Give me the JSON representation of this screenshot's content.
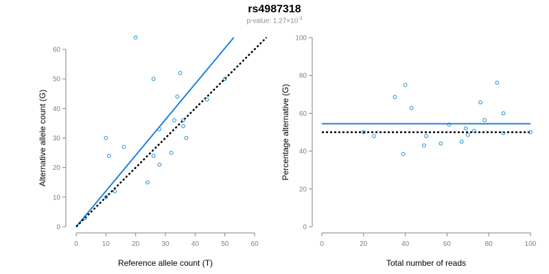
{
  "title": "rs4987318",
  "subtitle": {
    "prefix": "p-value: 1.27×10",
    "exponent": "-3"
  },
  "colors": {
    "fit_line": "#1f7fdc",
    "expected_line": "#000000",
    "points": "#1f8fcf",
    "axis": "#808080",
    "tick_label": "#808080"
  },
  "chart_data": [
    {
      "type": "scatter",
      "xlabel": "Reference allele count (T)",
      "ylabel": "Alternative allele count (G)",
      "xlim": [
        0,
        60
      ],
      "ylim": [
        0,
        60
      ],
      "xticks": [
        0,
        10,
        20,
        30,
        40,
        50,
        60
      ],
      "yticks": [
        0,
        10,
        20,
        30,
        40,
        50,
        60
      ],
      "grid": false,
      "points": [
        {
          "x": 3,
          "y": 3
        },
        {
          "x": 10,
          "y": 10
        },
        {
          "x": 10,
          "y": 30
        },
        {
          "x": 11,
          "y": 24
        },
        {
          "x": 13,
          "y": 12
        },
        {
          "x": 16,
          "y": 27
        },
        {
          "x": 20,
          "y": 64
        },
        {
          "x": 24,
          "y": 15
        },
        {
          "x": 26,
          "y": 24
        },
        {
          "x": 26,
          "y": 50
        },
        {
          "x": 28,
          "y": 33
        },
        {
          "x": 28,
          "y": 21
        },
        {
          "x": 32,
          "y": 25
        },
        {
          "x": 33,
          "y": 36
        },
        {
          "x": 34,
          "y": 44
        },
        {
          "x": 35,
          "y": 52
        },
        {
          "x": 36,
          "y": 34
        },
        {
          "x": 36,
          "y": 36
        },
        {
          "x": 37,
          "y": 30
        },
        {
          "x": 44,
          "y": 43
        },
        {
          "x": 50,
          "y": 50
        }
      ],
      "lines": [
        {
          "kind": "fit",
          "style": "solid",
          "x": [
            0,
            53
          ],
          "y": [
            0,
            64
          ]
        },
        {
          "kind": "expected",
          "style": "dotted",
          "x": [
            0,
            64
          ],
          "y": [
            0,
            64
          ]
        }
      ]
    },
    {
      "type": "scatter",
      "xlabel": "Total number of reads",
      "ylabel": "Percentage alternative (G)",
      "xlim": [
        0,
        100
      ],
      "ylim": [
        0,
        100
      ],
      "xticks": [
        0,
        20,
        40,
        60,
        80,
        100
      ],
      "yticks": [
        0,
        20,
        40,
        60,
        80,
        100
      ],
      "grid": false,
      "points": [
        {
          "x": 20,
          "y": 50
        },
        {
          "x": 25,
          "y": 48
        },
        {
          "x": 35,
          "y": 68.6
        },
        {
          "x": 39,
          "y": 38.5
        },
        {
          "x": 40,
          "y": 75
        },
        {
          "x": 43,
          "y": 62.8
        },
        {
          "x": 49,
          "y": 43
        },
        {
          "x": 50,
          "y": 48
        },
        {
          "x": 57,
          "y": 44
        },
        {
          "x": 61,
          "y": 54
        },
        {
          "x": 67,
          "y": 45
        },
        {
          "x": 69,
          "y": 52
        },
        {
          "x": 70,
          "y": 48.6
        },
        {
          "x": 73,
          "y": 50.7
        },
        {
          "x": 76,
          "y": 65.8
        },
        {
          "x": 78,
          "y": 56.4
        },
        {
          "x": 84,
          "y": 76.2
        },
        {
          "x": 87,
          "y": 60
        },
        {
          "x": 87,
          "y": 49.5
        },
        {
          "x": 100,
          "y": 50
        }
      ],
      "lines": [
        {
          "kind": "fit",
          "style": "solid",
          "x": [
            0,
            100
          ],
          "y": [
            54.5,
            54.5
          ]
        },
        {
          "kind": "expected",
          "style": "dotted",
          "x": [
            0,
            100
          ],
          "y": [
            50,
            50
          ]
        }
      ]
    }
  ]
}
